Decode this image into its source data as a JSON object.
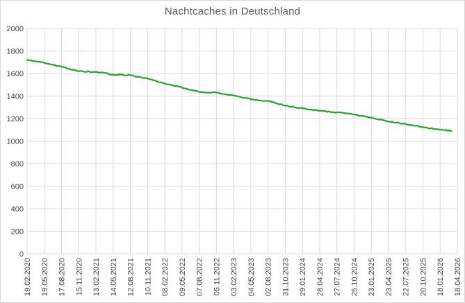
{
  "window": {
    "background": "#ffffff",
    "border_color": "#d9d9d9"
  },
  "chart_data": {
    "type": "line",
    "title": "Nachtcaches in Deutschland",
    "title_color": "#595959",
    "series_name": "Nachtcaches in Deutschland",
    "line_color": "#28a428",
    "line_width": 2.25,
    "gridline_color": "#d9d9d9",
    "axis_label_color": "#404040",
    "legend_position": "none",
    "grid": "both",
    "xlabel": "",
    "ylabel": "",
    "ylim": [
      0,
      2000
    ],
    "y_step": 200,
    "y_tick_labels": [
      "2000",
      "1800",
      "1600",
      "1400",
      "1200",
      "1000",
      "800",
      "600",
      "400",
      "200",
      "0"
    ],
    "categories": [
      "19.02.2020",
      "19.05.2020",
      "17.08.2020",
      "15.11.2020",
      "13.02.2021",
      "14.05.2021",
      "12.08.2021",
      "10.11.2021",
      "08.02.2022",
      "09.05.2022",
      "07.08.2022",
      "05.11.2022",
      "03.02.2023",
      "04.05.2023",
      "02.08.2023",
      "31.10.2023",
      "29.01.2024",
      "28.04.2024",
      "27.07.2024",
      "25.10.2024",
      "23.01.2025",
      "23.04.2025",
      "22.07.2025",
      "20.10.2025",
      "18.01.2026",
      "18.04.2026"
    ],
    "values": [
      1720,
      1695,
      1660,
      1620,
      1615,
      1590,
      1585,
      1555,
      1510,
      1475,
      1435,
      1430,
      1405,
      1370,
      1355,
      1315,
      1290,
      1270,
      1255,
      1235,
      1210,
      1175,
      1150,
      1125,
      1100,
      null
    ],
    "line_end": {
      "tick_position": 24.65,
      "value": 1090
    }
  }
}
